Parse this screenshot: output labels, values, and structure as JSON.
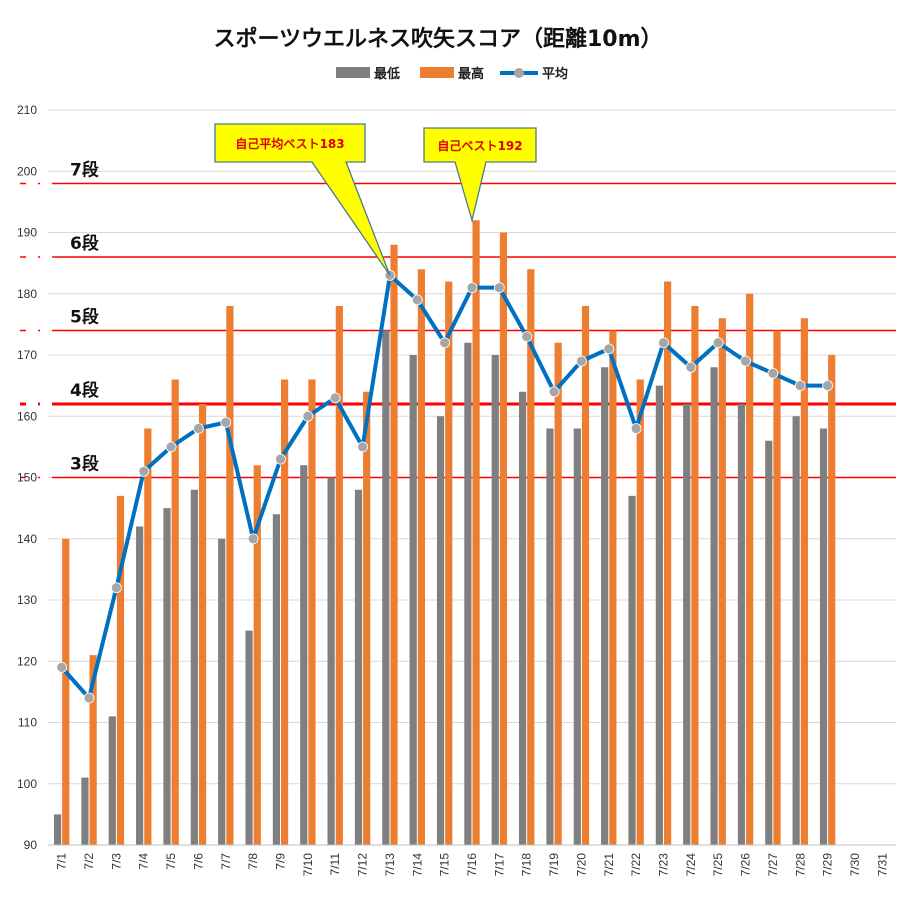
{
  "chart_data": {
    "type": "bar",
    "title": "スポーツウエルネス吹矢スコア（距離10m）",
    "categories": [
      "7/1",
      "7/2",
      "7/3",
      "7/4",
      "7/5",
      "7/6",
      "7/7",
      "7/8",
      "7/9",
      "7/10",
      "7/11",
      "7/12",
      "7/13",
      "7/14",
      "7/15",
      "7/16",
      "7/17",
      "7/18",
      "7/19",
      "7/20",
      "7/21",
      "7/22",
      "7/23",
      "7/24",
      "7/25",
      "7/26",
      "7/27",
      "7/28",
      "7/29",
      "7/30",
      "7/31"
    ],
    "ylim": [
      90,
      210
    ],
    "yticks": [
      90,
      100,
      110,
      120,
      130,
      140,
      150,
      160,
      170,
      180,
      190,
      200,
      210
    ],
    "series": [
      {
        "name": "最低",
        "type": "bar",
        "color": "#7f7f7f",
        "values": [
          95,
          101,
          111,
          142,
          145,
          148,
          140,
          125,
          144,
          152,
          150,
          148,
          174,
          170,
          160,
          172,
          170,
          164,
          158,
          158,
          168,
          147,
          165,
          162,
          168,
          162,
          156,
          160,
          158,
          null,
          null
        ]
      },
      {
        "name": "最高",
        "type": "bar",
        "color": "#ed7d31",
        "values": [
          140,
          121,
          147,
          158,
          166,
          162,
          178,
          152,
          166,
          166,
          178,
          164,
          188,
          184,
          182,
          192,
          190,
          184,
          172,
          178,
          174,
          166,
          182,
          178,
          176,
          180,
          174,
          176,
          170,
          null,
          null
        ]
      },
      {
        "name": "平均",
        "type": "line",
        "color": "#0070c0",
        "marker_color": "#a6a6a6",
        "values": [
          119,
          114,
          132,
          151,
          155,
          158,
          159,
          140,
          153,
          160,
          163,
          155,
          183,
          179,
          172,
          181,
          181,
          173,
          164,
          169,
          171,
          158,
          172,
          168,
          172,
          169,
          167,
          165,
          165,
          null,
          null
        ]
      }
    ],
    "reference_lines": [
      {
        "label": "7段",
        "value": 198,
        "color": "#ff0000",
        "label_color": "#111111"
      },
      {
        "label": "6段",
        "value": 186,
        "color": "#ff0000",
        "label_color": "#111111"
      },
      {
        "label": "5段",
        "value": 174,
        "color": "#ff0000",
        "label_color": "#111111"
      },
      {
        "label": "4段",
        "value": 162,
        "color": "#ff0000",
        "label_color": "#ff0000",
        "emphasis": true
      },
      {
        "label": "3段",
        "value": 150,
        "color": "#ff0000",
        "label_color": "#111111"
      }
    ],
    "annotations": [
      {
        "text": "自己平均ベスト183",
        "target_category": "7/13",
        "target_value": 183
      },
      {
        "text": "自己ベスト192",
        "target_category": "7/16",
        "target_value": 192
      }
    ],
    "grid": true,
    "legend": "top-center"
  }
}
